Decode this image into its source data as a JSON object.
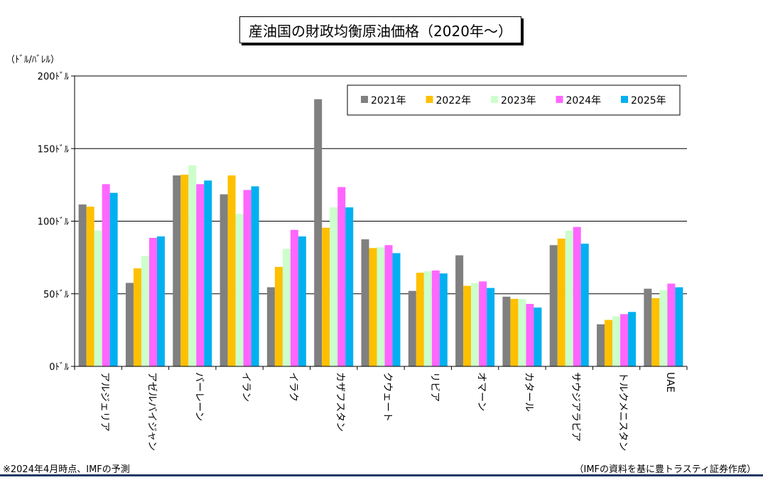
{
  "chart_data": {
    "type": "bar",
    "title": "産油国の財政均衡原油価格（2020年～）",
    "ylabel": "（ﾄﾞﾙ/ﾊﾞﾚﾙ）",
    "ylim": [
      0,
      200
    ],
    "yticks": [
      0,
      50,
      100,
      150,
      200
    ],
    "ytick_labels": [
      "0ﾄﾞﾙ",
      "50ﾄﾞﾙ",
      "100ﾄﾞﾙ",
      "150ﾄﾞﾙ",
      "200ﾄﾞﾙ"
    ],
    "grid": true,
    "legend_position": "top-right",
    "categories": [
      "アルジェリア",
      "アゼルバイジャン",
      "バーレーン",
      "イラン",
      "イラク",
      "カザフスタン",
      "クウェート",
      "リビア",
      "オマーン",
      "カタール",
      "サウジアラビア",
      "トルクメニスタン",
      "UAE"
    ],
    "series": [
      {
        "name": "2021年",
        "color": "#808080",
        "values": [
          111.5,
          57.5,
          131.5,
          118.5,
          54.5,
          184,
          87.5,
          52,
          76.5,
          48,
          83.5,
          29,
          53.5
        ]
      },
      {
        "name": "2022年",
        "color": "#ffc000",
        "values": [
          110,
          67.5,
          132,
          131.5,
          68.5,
          95.5,
          81.5,
          64.5,
          55.5,
          46.5,
          88,
          32,
          47
        ]
      },
      {
        "name": "2023年",
        "color": "#ccffcc",
        "values": [
          93.5,
          76,
          138.5,
          105,
          81,
          109.5,
          82,
          65.5,
          57.5,
          46.5,
          93.5,
          34.5,
          52.5
        ]
      },
      {
        "name": "2024年",
        "color": "#ff66ff",
        "values": [
          125.5,
          88.5,
          125.5,
          121.5,
          94,
          123.5,
          83.5,
          66,
          58.5,
          43,
          96,
          36,
          57
        ]
      },
      {
        "name": "2025年",
        "color": "#00b0f0",
        "values": [
          119.5,
          89.5,
          128,
          124,
          89.5,
          109.5,
          78,
          64,
          54,
          40.5,
          84.5,
          37.5,
          54.5
        ]
      }
    ]
  },
  "footnote": "※2024年4月時点、IMFの予測",
  "source": "（IMFの資料を基に豊トラスティ証券作成）"
}
